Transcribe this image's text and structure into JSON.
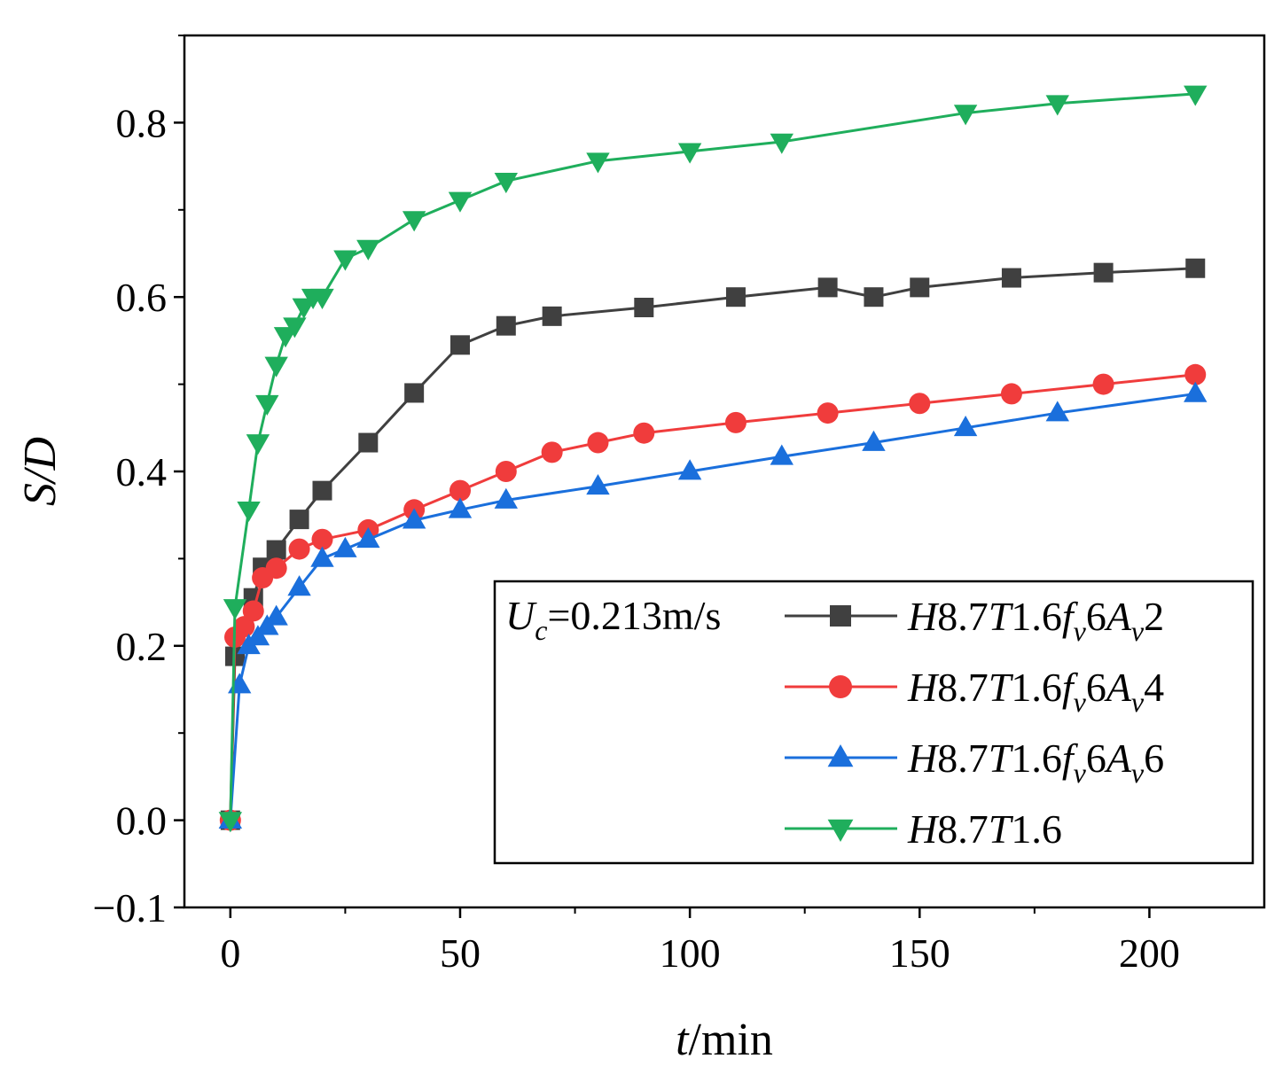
{
  "chart_data": {
    "type": "line",
    "title": "",
    "xlabel": "t/min",
    "ylabel": "S/D",
    "xlim": [
      -10,
      225
    ],
    "ylim": [
      -0.1,
      0.9
    ],
    "x_ticks": [
      0,
      50,
      100,
      150,
      200
    ],
    "x_tick_labels": [
      "0",
      "50",
      "100",
      "150",
      "200"
    ],
    "y_ticks": [
      -0.1,
      0.0,
      0.2,
      0.4,
      0.6,
      0.8
    ],
    "y_tick_labels": [
      "−0.1",
      "0.0",
      "0.2",
      "0.4",
      "0.6",
      "0.8"
    ],
    "legend_title": "Uc=0.213m/s",
    "legend_position": "bottom-right",
    "grid": false,
    "series": [
      {
        "name": "H8.7T1.6fv6Av2",
        "label_parts": [
          {
            "t": "H",
            "i": true
          },
          {
            "t": "8.7"
          },
          {
            "t": "T",
            "i": true
          },
          {
            "t": "1.6"
          },
          {
            "t": "f",
            "i": true
          },
          {
            "t": "v",
            "i": true,
            "sub": true
          },
          {
            "t": "6"
          },
          {
            "t": "A",
            "i": true
          },
          {
            "t": "v",
            "i": true,
            "sub": true
          },
          {
            "t": "2"
          }
        ],
        "color": "#404040",
        "marker": "square",
        "x": [
          0,
          1,
          5,
          7,
          10,
          15,
          20,
          30,
          40,
          50,
          60,
          70,
          90,
          110,
          130,
          140,
          150,
          170,
          190,
          210
        ],
        "y": [
          0.0,
          0.188,
          0.255,
          0.29,
          0.31,
          0.345,
          0.378,
          0.433,
          0.49,
          0.545,
          0.567,
          0.578,
          0.588,
          0.6,
          0.611,
          0.6,
          0.611,
          0.622,
          0.628,
          0.633
        ]
      },
      {
        "name": "H8.7T1.6fv6Av4",
        "label_parts": [
          {
            "t": "H",
            "i": true
          },
          {
            "t": "8.7"
          },
          {
            "t": "T",
            "i": true
          },
          {
            "t": "1.6"
          },
          {
            "t": "f",
            "i": true
          },
          {
            "t": "v",
            "i": true,
            "sub": true
          },
          {
            "t": "6"
          },
          {
            "t": "A",
            "i": true
          },
          {
            "t": "v",
            "i": true,
            "sub": true
          },
          {
            "t": "4"
          }
        ],
        "color": "#f03c3c",
        "marker": "circle",
        "x": [
          0,
          1,
          3,
          5,
          7,
          10,
          15,
          20,
          30,
          40,
          50,
          60,
          70,
          80,
          90,
          110,
          130,
          150,
          170,
          190,
          210
        ],
        "y": [
          0.0,
          0.21,
          0.222,
          0.24,
          0.278,
          0.289,
          0.311,
          0.322,
          0.333,
          0.356,
          0.378,
          0.4,
          0.422,
          0.433,
          0.444,
          0.456,
          0.467,
          0.478,
          0.489,
          0.5,
          0.511
        ]
      },
      {
        "name": "H8.7T1.6fv6Av6",
        "label_parts": [
          {
            "t": "H",
            "i": true
          },
          {
            "t": "8.7"
          },
          {
            "t": "T",
            "i": true
          },
          {
            "t": "1.6"
          },
          {
            "t": "f",
            "i": true
          },
          {
            "t": "v",
            "i": true,
            "sub": true
          },
          {
            "t": "6"
          },
          {
            "t": "A",
            "i": true
          },
          {
            "t": "v",
            "i": true,
            "sub": true
          },
          {
            "t": "6"
          }
        ],
        "color": "#1a6fdc",
        "marker": "triangle-up",
        "x": [
          0,
          2,
          4,
          6,
          8,
          10,
          15,
          20,
          25,
          30,
          40,
          50,
          60,
          80,
          100,
          120,
          140,
          160,
          180,
          210
        ],
        "y": [
          0.0,
          0.155,
          0.2,
          0.21,
          0.222,
          0.233,
          0.267,
          0.3,
          0.311,
          0.322,
          0.344,
          0.356,
          0.367,
          0.383,
          0.4,
          0.417,
          0.433,
          0.45,
          0.467,
          0.489
        ]
      },
      {
        "name": "H8.7T1.6",
        "label_parts": [
          {
            "t": "H",
            "i": true
          },
          {
            "t": "8.7"
          },
          {
            "t": "T",
            "i": true
          },
          {
            "t": "1.6"
          }
        ],
        "color": "#1fae5c",
        "marker": "triangle-down",
        "x": [
          0,
          1,
          4,
          6,
          8,
          10,
          12,
          14,
          16,
          18,
          20,
          25,
          30,
          40,
          50,
          60,
          80,
          100,
          120,
          160,
          180,
          210
        ],
        "y": [
          0.0,
          0.244,
          0.356,
          0.433,
          0.478,
          0.522,
          0.556,
          0.567,
          0.589,
          0.6,
          0.6,
          0.644,
          0.656,
          0.689,
          0.711,
          0.733,
          0.756,
          0.767,
          0.778,
          0.811,
          0.822,
          0.833
        ]
      }
    ]
  }
}
